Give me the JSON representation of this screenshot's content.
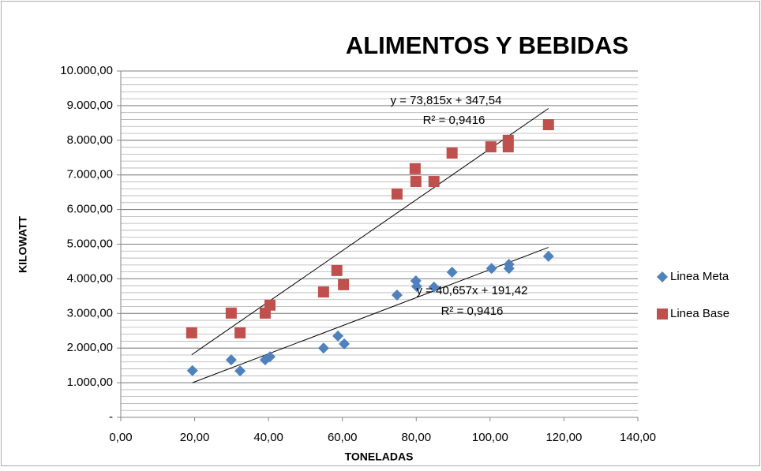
{
  "chart_data": {
    "type": "scatter",
    "title": "ALIMENTOS Y BEBIDAS",
    "x_label": "TONELADAS",
    "y_label": "KILOWATT",
    "xlim": [
      0,
      140
    ],
    "xticks": [
      {
        "value": 0,
        "label": "0,00"
      },
      {
        "value": 20,
        "label": "20,00"
      },
      {
        "value": 40,
        "label": "40,00"
      },
      {
        "value": 60,
        "label": "60,00"
      },
      {
        "value": 80,
        "label": "80,00"
      },
      {
        "value": 100,
        "label": "100,00"
      },
      {
        "value": 120,
        "label": "120,00"
      },
      {
        "value": 140,
        "label": "140,00"
      }
    ],
    "ylim": [
      0,
      10000
    ],
    "yticks": [
      {
        "value": 0,
        "label": "-"
      },
      {
        "value": 1000,
        "label": "1.000,00"
      },
      {
        "value": 2000,
        "label": "2.000,00"
      },
      {
        "value": 3000,
        "label": "3.000,00"
      },
      {
        "value": 4000,
        "label": "4.000,00"
      },
      {
        "value": 5000,
        "label": "5.000,00"
      },
      {
        "value": 6000,
        "label": "6.000,00"
      },
      {
        "value": 7000,
        "label": "7.000,00"
      },
      {
        "value": 8000,
        "label": "8.000,00"
      },
      {
        "value": 9000,
        "label": "9.000,00"
      },
      {
        "value": 10000,
        "label": "10.000,00"
      }
    ],
    "grid": true,
    "minor_grid_step": 200,
    "legend": "right",
    "trendline": "linear",
    "series": [
      {
        "name": "Linea Meta",
        "color": "#4f81bd",
        "marker": "diamond",
        "x": [
          19.4,
          29.9,
          32.3,
          39.1,
          40.4,
          54.9,
          58.8,
          60.5,
          74.8,
          79.9,
          80.1,
          84.8,
          89.7,
          100.4,
          105.1,
          105.1,
          115.8
        ],
        "values": [
          1350,
          1660,
          1340,
          1660,
          1750,
          2000,
          2350,
          2120,
          3530,
          3940,
          3780,
          3760,
          4190,
          4300,
          4420,
          4300,
          4650
        ]
      },
      {
        "name": "Linea Base",
        "color": "#c0504d",
        "marker": "square",
        "x": [
          19.2,
          29.9,
          32.3,
          39.1,
          40.4,
          54.9,
          58.5,
          60.3,
          74.8,
          79.7,
          79.9,
          84.8,
          89.7,
          100.2,
          104.9,
          104.9,
          115.8
        ],
        "values": [
          2440,
          3010,
          2440,
          3010,
          3240,
          3620,
          4240,
          3830,
          6450,
          7180,
          6810,
          6810,
          7630,
          7810,
          8000,
          7810,
          8450
        ]
      }
    ],
    "annotations": [
      "y = 73,815x + 347,54",
      "R² = 0,9416",
      "y = 40,657x + 191,42",
      "R² = 0,9416"
    ]
  }
}
